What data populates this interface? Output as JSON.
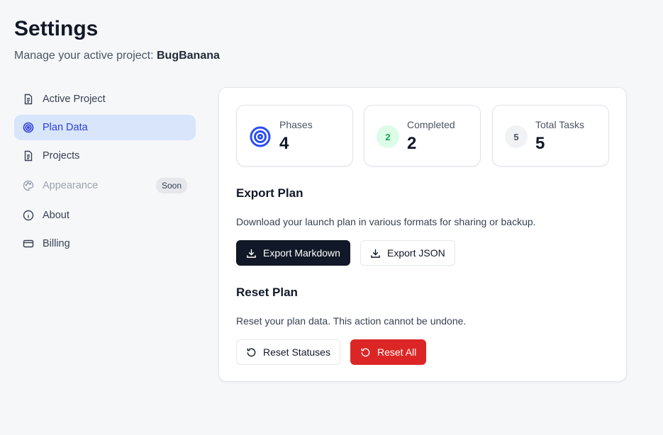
{
  "header": {
    "title": "Settings",
    "subtitle_prefix": "Manage your active project: ",
    "project": "BugBanana"
  },
  "sidebar": {
    "items": [
      {
        "label": "Active Project",
        "icon": "file-icon"
      },
      {
        "label": "Plan Data",
        "icon": "target-icon",
        "active": true
      },
      {
        "label": "Projects",
        "icon": "file-icon"
      },
      {
        "label": "Appearance",
        "icon": "palette-icon",
        "badge": "Soon",
        "disabled": true
      },
      {
        "label": "About",
        "icon": "info-icon"
      },
      {
        "label": "Billing",
        "icon": "credit-card-icon"
      }
    ]
  },
  "stats": [
    {
      "label": "Phases",
      "value": "4",
      "icon": "target-icon"
    },
    {
      "label": "Completed",
      "value": "2",
      "badge": "2",
      "color": "#16a34a"
    },
    {
      "label": "Total Tasks",
      "value": "5",
      "badge": "5"
    }
  ],
  "export": {
    "title": "Export Plan",
    "description": "Download your launch plan in various formats for sharing or backup.",
    "markdown": "Export Markdown",
    "json": "Export JSON"
  },
  "reset": {
    "title": "Reset Plan",
    "description": "Reset your plan data. This action cannot be undone.",
    "statuses": "Reset Statuses",
    "all": "Reset All"
  },
  "colors": {
    "accent": "#2b3fd8",
    "danger": "#dc2626",
    "primary": "#111827"
  }
}
